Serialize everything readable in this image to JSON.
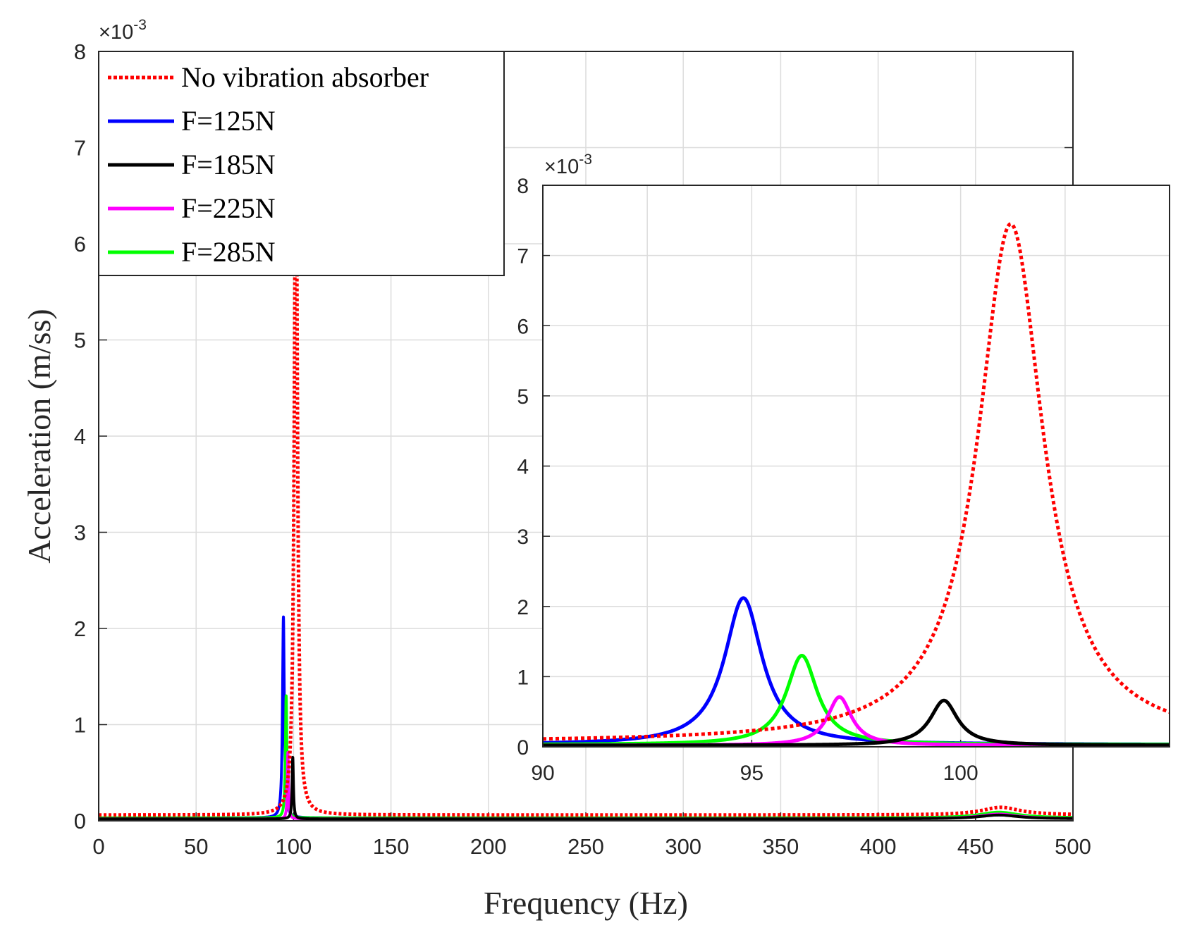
{
  "chart_data": [
    {
      "id": "main",
      "type": "line",
      "xlabel": "Frequency (Hz)",
      "ylabel": "Acceleration (m/ss)",
      "xlim": [
        0,
        500
      ],
      "ylim": [
        0,
        8
      ],
      "y_multiplier": "×10",
      "y_multiplier_exp": "-3",
      "xticks": [
        0,
        50,
        100,
        150,
        200,
        250,
        300,
        350,
        400,
        450,
        500
      ],
      "yticks": [
        0,
        1,
        2,
        3,
        4,
        5,
        6,
        7,
        8
      ],
      "grid": true,
      "legend_position": "top-left",
      "series": [
        {
          "name": "No vibration absorber",
          "color": "#ff0000",
          "style": "dotted",
          "peak_x": 101.2,
          "peak_y": 7.45,
          "gamma": 0.95,
          "base": 0.06,
          "peak2_x": 463,
          "peak2_y": 0.08
        },
        {
          "name": "F=125N",
          "color": "#0000ff",
          "style": "solid",
          "peak_x": 94.8,
          "peak_y": 2.12,
          "gamma": 0.55,
          "base": 0.03,
          "peak2_x": 462,
          "peak2_y": 0.03
        },
        {
          "name": "F=185N",
          "color": "#000000",
          "style": "solid",
          "peak_x": 99.6,
          "peak_y": 0.66,
          "gamma": 0.4,
          "base": 0.02,
          "peak2_x": 462,
          "peak2_y": 0.04
        },
        {
          "name": "F=225N",
          "color": "#ff00ff",
          "style": "solid",
          "peak_x": 97.1,
          "peak_y": 0.71,
          "gamma": 0.35,
          "base": 0.02,
          "peak2_x": 462,
          "peak2_y": 0.05
        },
        {
          "name": "F=285N",
          "color": "#00ff00",
          "style": "solid",
          "peak_x": 96.2,
          "peak_y": 1.3,
          "gamma": 0.45,
          "base": 0.03,
          "peak2_x": 462,
          "peak2_y": 0.06
        }
      ]
    },
    {
      "id": "inset",
      "type": "line",
      "xlim": [
        90,
        105
      ],
      "ylim": [
        0,
        8
      ],
      "y_multiplier": "×10",
      "y_multiplier_exp": "-3",
      "xticks": [
        90,
        95,
        100
      ],
      "yticks": [
        0,
        1,
        2,
        3,
        4,
        5,
        6,
        7,
        8
      ],
      "grid": true
    }
  ]
}
